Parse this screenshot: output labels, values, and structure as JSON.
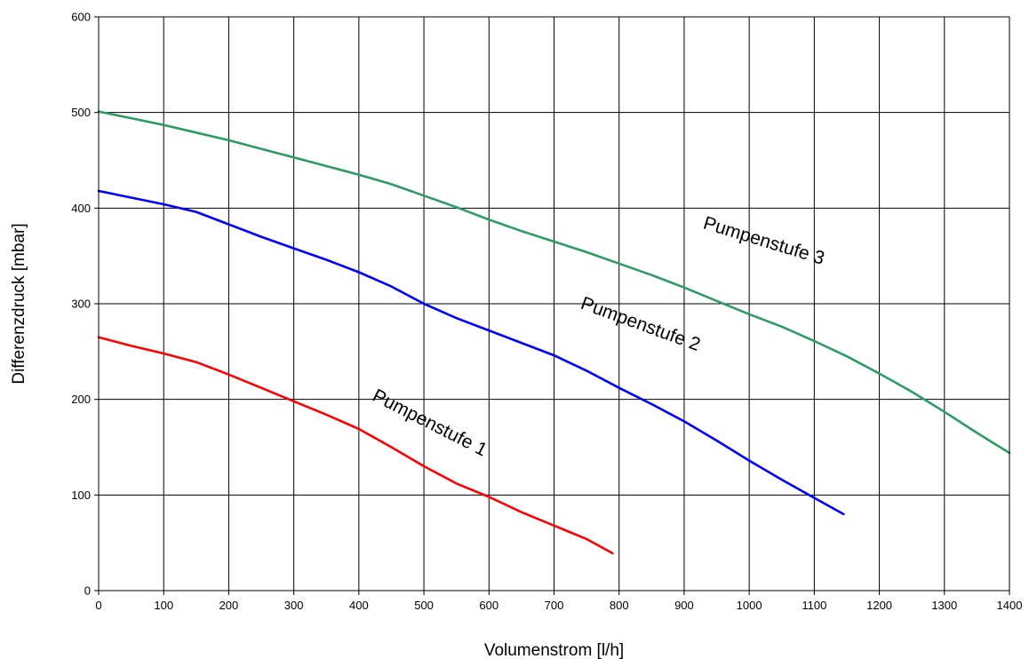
{
  "chart_data": {
    "type": "line",
    "title": "",
    "xlabel": "Volumenstrom [l/h]",
    "ylabel": "Differenzdruck [mbar]",
    "xlim": [
      0,
      1400
    ],
    "ylim": [
      0,
      600
    ],
    "x_ticks": [
      0,
      100,
      200,
      300,
      400,
      500,
      600,
      700,
      800,
      900,
      1000,
      1100,
      1200,
      1300,
      1400
    ],
    "y_ticks": [
      0,
      100,
      200,
      300,
      400,
      500,
      600
    ],
    "x_tick_labels": [
      "0",
      "100",
      "200",
      "300",
      "400",
      "500",
      "600",
      "700",
      "800",
      "900",
      "1000",
      "1100",
      "1200",
      "1300",
      "1400"
    ],
    "y_tick_labels": [
      "0",
      "100",
      "200",
      "300",
      "400",
      "500",
      "600"
    ],
    "grid": true,
    "legend": "none (inline curve labels)",
    "series": [
      {
        "name": "Pumpenstufe 1",
        "color": "#ff0000",
        "points": [
          [
            0,
            265
          ],
          [
            50,
            256
          ],
          [
            100,
            248
          ],
          [
            150,
            239
          ],
          [
            200,
            226
          ],
          [
            250,
            212
          ],
          [
            300,
            198
          ],
          [
            350,
            184
          ],
          [
            400,
            169
          ],
          [
            450,
            150
          ],
          [
            500,
            130
          ],
          [
            550,
            112
          ],
          [
            600,
            98
          ],
          [
            650,
            82
          ],
          [
            700,
            68
          ],
          [
            750,
            54
          ],
          [
            790,
            39
          ]
        ]
      },
      {
        "name": "Pumpenstufe 2",
        "color": "#0000ff",
        "points": [
          [
            0,
            418
          ],
          [
            50,
            411
          ],
          [
            100,
            404
          ],
          [
            150,
            396
          ],
          [
            200,
            383
          ],
          [
            250,
            370
          ],
          [
            300,
            358
          ],
          [
            350,
            346
          ],
          [
            400,
            333
          ],
          [
            450,
            318
          ],
          [
            500,
            300
          ],
          [
            550,
            285
          ],
          [
            600,
            272
          ],
          [
            650,
            259
          ],
          [
            700,
            246
          ],
          [
            750,
            230
          ],
          [
            800,
            212
          ],
          [
            850,
            195
          ],
          [
            900,
            177
          ],
          [
            950,
            157
          ],
          [
            1000,
            136
          ],
          [
            1050,
            116
          ],
          [
            1100,
            97
          ],
          [
            1145,
            80
          ]
        ]
      },
      {
        "name": "Pumpenstufe 3",
        "color": "#2e9b65",
        "points": [
          [
            0,
            501
          ],
          [
            50,
            494
          ],
          [
            100,
            487
          ],
          [
            150,
            479
          ],
          [
            200,
            471
          ],
          [
            250,
            462
          ],
          [
            300,
            453
          ],
          [
            350,
            444
          ],
          [
            400,
            435
          ],
          [
            450,
            425
          ],
          [
            500,
            413
          ],
          [
            550,
            401
          ],
          [
            600,
            388
          ],
          [
            650,
            376
          ],
          [
            700,
            365
          ],
          [
            750,
            354
          ],
          [
            800,
            342
          ],
          [
            850,
            330
          ],
          [
            900,
            317
          ],
          [
            950,
            303
          ],
          [
            1000,
            289
          ],
          [
            1050,
            276
          ],
          [
            1100,
            261
          ],
          [
            1150,
            245
          ],
          [
            1200,
            227
          ],
          [
            1250,
            208
          ],
          [
            1300,
            187
          ],
          [
            1350,
            165
          ],
          [
            1400,
            144
          ]
        ]
      }
    ],
    "annotations": [
      {
        "text": "Pumpenstufe 1",
        "x": 505,
        "y": 170,
        "angle": 27
      },
      {
        "text": "Pumpenstufe 2",
        "x": 830,
        "y": 273,
        "angle": 20
      },
      {
        "text": "Pumpenstufe 3",
        "x": 1020,
        "y": 360,
        "angle": 17
      }
    ]
  }
}
